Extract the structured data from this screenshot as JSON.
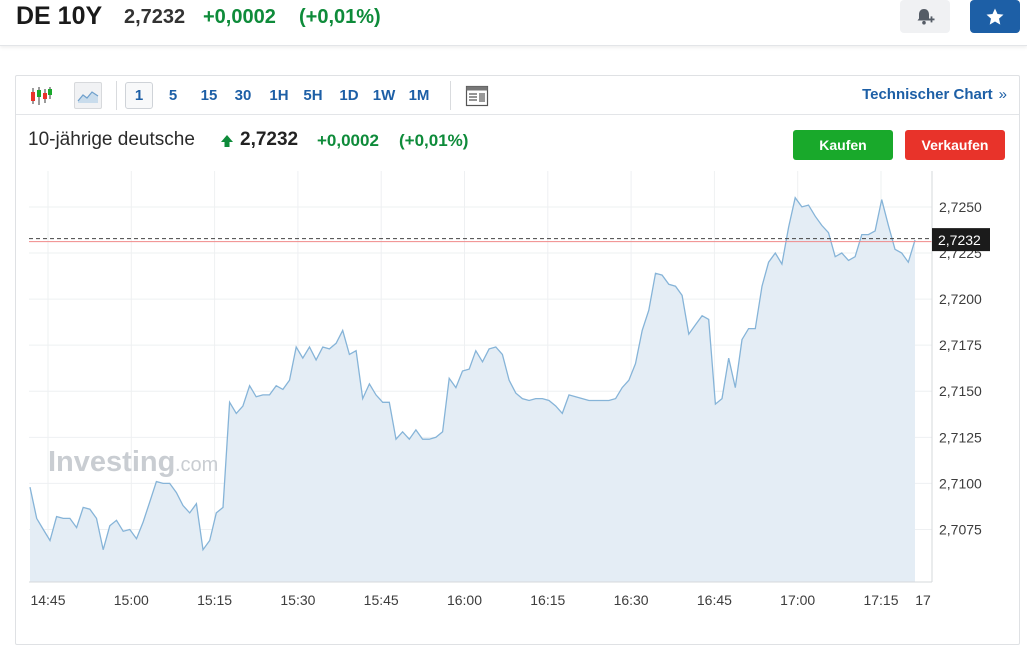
{
  "header": {
    "instrument": "DE 10Y",
    "price": "2,7232",
    "change": "+0,0002",
    "change_pct": "(+0,01%)"
  },
  "toolbar": {
    "intervals": [
      "1",
      "5",
      "15",
      "30",
      "1H",
      "5H",
      "1D",
      "1W",
      "1M"
    ],
    "active_interval": "1",
    "technical_chart_label": "Technischer Chart"
  },
  "chart_header": {
    "title": "10-jährige deutsche",
    "price": "2,7232",
    "change": "+0,0002",
    "change_pct": "(+0,01%)",
    "buy_label": "Kaufen",
    "sell_label": "Verkaufen"
  },
  "watermark": {
    "brand": "Investing",
    "suffix": ".com"
  },
  "colors": {
    "accent": "#1d5fa6",
    "positive": "#0e8b3a",
    "buy": "#19a92b",
    "sell": "#e8332a",
    "line": "#86b4d8",
    "area": "#e4edf5"
  },
  "chart_data": {
    "type": "area",
    "xlabel": "",
    "ylabel": "",
    "x_ticks": [
      "14:45",
      "15:00",
      "15:15",
      "15:30",
      "15:45",
      "16:00",
      "16:15",
      "16:30",
      "16:45",
      "17:00",
      "17:15",
      "17"
    ],
    "y_ticks": [
      "2,7250",
      "2,7225",
      "2,7200",
      "2,7175",
      "2,7150",
      "2,7125",
      "2,7100",
      "2,7075"
    ],
    "y_tick_values": [
      2.725,
      2.7225,
      2.72,
      2.7175,
      2.715,
      2.7125,
      2.71,
      2.7075
    ],
    "ylim": [
      2.70465,
      2.72695
    ],
    "grid": true,
    "current_value": 2.7232,
    "current_label": "2,7232",
    "series": [
      {
        "values": [
          2.7098,
          2.7081,
          2.7075,
          2.7069,
          2.7082,
          2.7081,
          2.7081,
          2.7076,
          2.7087,
          2.7086,
          2.7081,
          2.7064,
          2.7077,
          2.708,
          2.7074,
          2.7075,
          2.707,
          2.7079,
          2.709,
          2.7101,
          2.71,
          2.71,
          2.7095,
          2.7088,
          2.7084,
          2.7089,
          2.7064,
          2.7069,
          2.7084,
          2.7087,
          2.7144,
          2.7138,
          2.7142,
          2.7153,
          2.7147,
          2.7148,
          2.7148,
          2.7153,
          2.7151,
          2.7156,
          2.7174,
          2.7168,
          2.7174,
          2.7167,
          2.7174,
          2.7173,
          2.7176,
          2.7183,
          2.717,
          2.7172,
          2.7146,
          2.7154,
          2.7148,
          2.7144,
          2.7144,
          2.7124,
          2.7128,
          2.7124,
          2.7129,
          2.7124,
          2.7124,
          2.7125,
          2.7128,
          2.7157,
          2.7152,
          2.7161,
          2.7162,
          2.7172,
          2.7166,
          2.7173,
          2.7174,
          2.717,
          2.7156,
          2.7149,
          2.7146,
          2.7145,
          2.7146,
          2.7146,
          2.7145,
          2.7142,
          2.7138,
          2.7148,
          2.7147,
          2.7146,
          2.7145,
          2.7145,
          2.7145,
          2.7145,
          2.7146,
          2.7152,
          2.7156,
          2.7165,
          2.7183,
          2.7194,
          2.7214,
          2.7213,
          2.7208,
          2.7207,
          2.7202,
          2.7181,
          2.7186,
          2.7191,
          2.7189,
          2.7143,
          2.7146,
          2.7168,
          2.7152,
          2.7178,
          2.7184,
          2.7184,
          2.7207,
          2.722,
          2.7225,
          2.7219,
          2.7239,
          2.7255,
          2.725,
          2.7251,
          2.7245,
          2.724,
          2.7236,
          2.7223,
          2.7225,
          2.7221,
          2.7223,
          2.7235,
          2.7235,
          2.7237,
          2.7254,
          2.724,
          2.7227,
          2.7225,
          2.722,
          2.7232
        ]
      }
    ]
  }
}
